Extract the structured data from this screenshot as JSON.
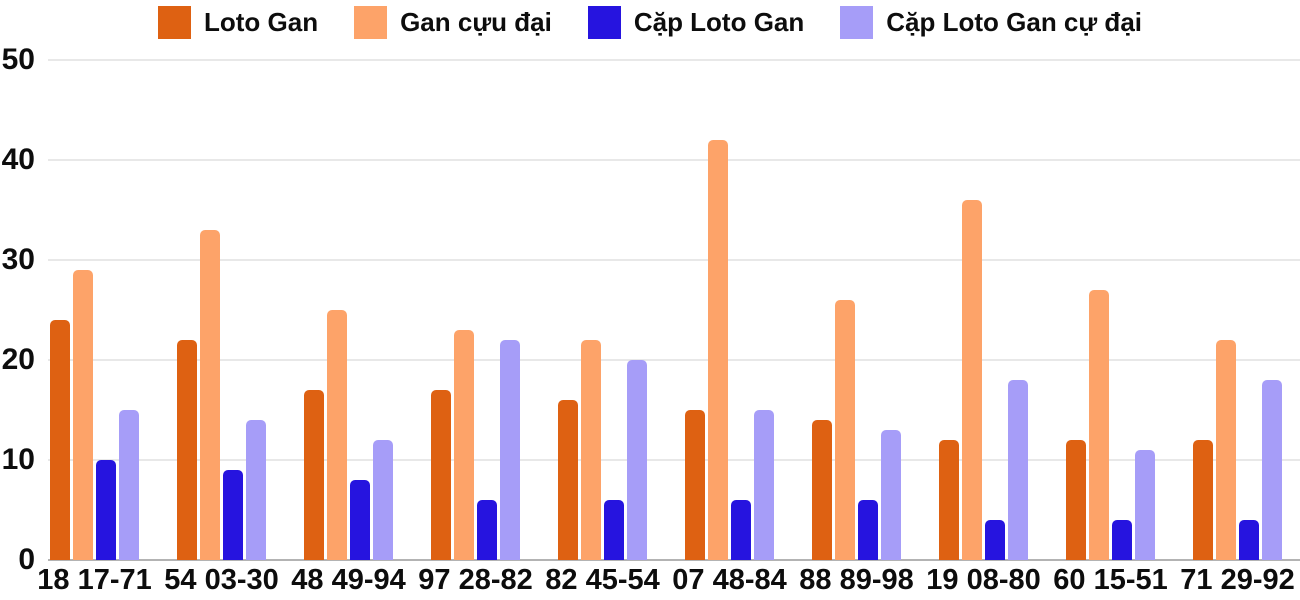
{
  "chart_data": {
    "type": "bar",
    "title": "",
    "xlabel": "",
    "ylabel": "",
    "categories": [
      "18 17-71",
      "54 03-30",
      "48 49-94",
      "97 28-82",
      "82 45-54",
      "07 48-84",
      "88 89-98",
      "19 08-80",
      "60 15-51",
      "71 29-92"
    ],
    "series": [
      {
        "name": "Loto Gan",
        "color": "#DE6112",
        "values": [
          24,
          22,
          17,
          17,
          16,
          15,
          14,
          12,
          12,
          12
        ]
      },
      {
        "name": "Gan cựu đại",
        "color": "#FDA369",
        "values": [
          29,
          33,
          25,
          23,
          22,
          42,
          26,
          36,
          27,
          22
        ]
      },
      {
        "name": "Cặp Loto Gan",
        "color": "#2614DF",
        "values": [
          10,
          9,
          8,
          6,
          6,
          6,
          6,
          4,
          4,
          4
        ]
      },
      {
        "name": "Cặp Loto Gan cự đại",
        "color": "#A69DF8",
        "values": [
          15,
          14,
          12,
          22,
          20,
          15,
          13,
          18,
          11,
          18
        ]
      }
    ],
    "ylim": [
      0,
      50
    ],
    "yticks": [
      0,
      10,
      20,
      30,
      40,
      50
    ],
    "grid": true,
    "legend_position": "top"
  },
  "style_colors": {
    "grid": "#e8e8e8",
    "axis": "#b3b3b3",
    "text": "#0d0d0d",
    "background": "#ffffff"
  }
}
